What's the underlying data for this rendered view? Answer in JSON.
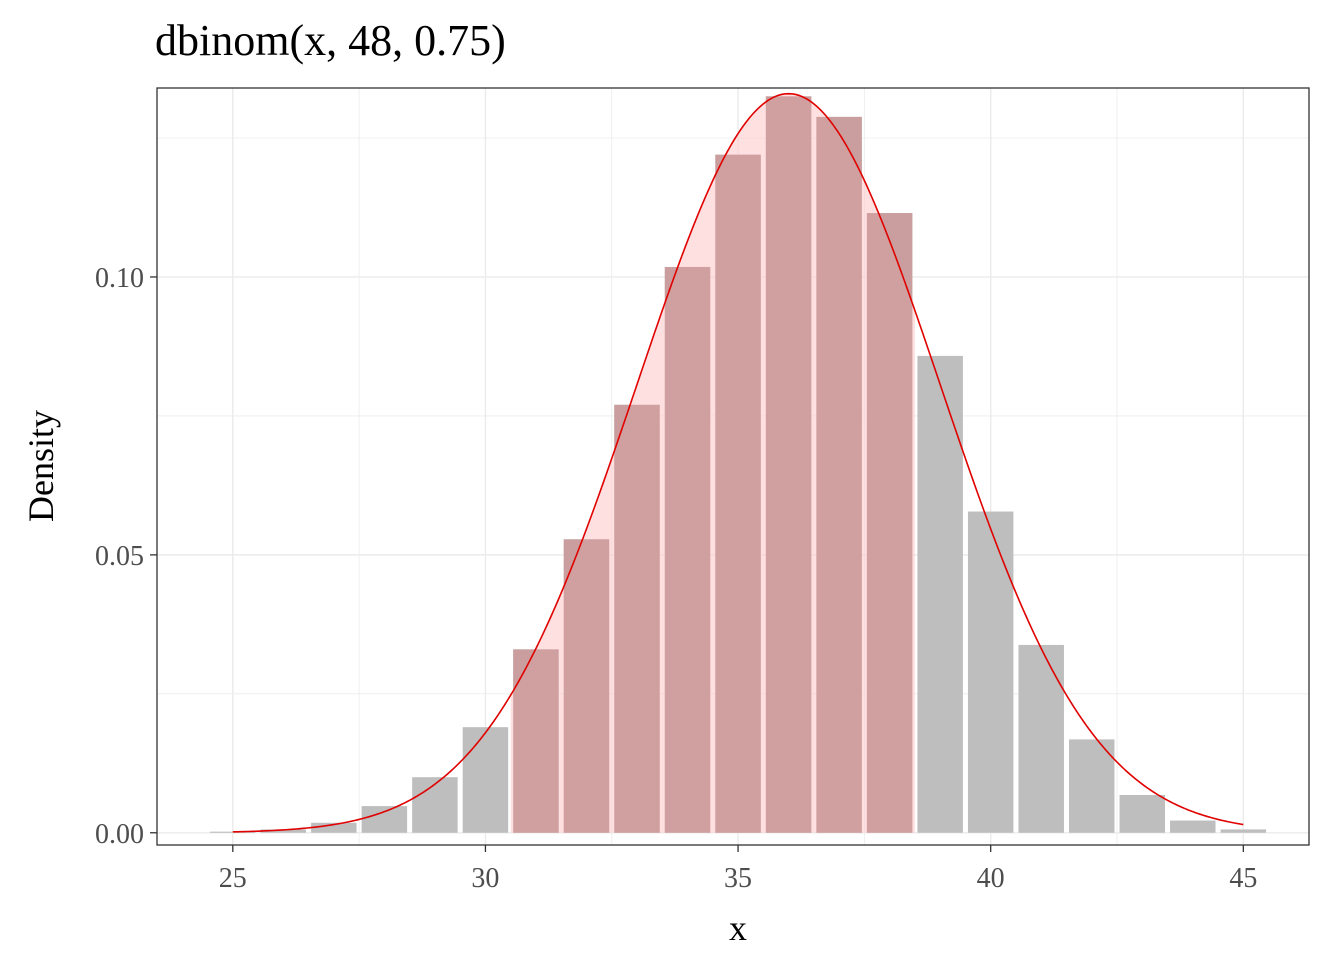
{
  "chart_data": {
    "type": "bar",
    "title": "dbinom(x, 48, 0.75)",
    "xlabel": "x",
    "ylabel": "Density",
    "x": [
      25,
      26,
      27,
      28,
      29,
      30,
      31,
      32,
      33,
      34,
      35,
      36,
      37,
      38,
      39,
      40,
      41,
      42,
      43,
      44,
      45
    ],
    "values": [
      0.0002,
      0.0006,
      0.0018,
      0.0048,
      0.01,
      0.019,
      0.033,
      0.0528,
      0.077,
      0.1018,
      0.122,
      0.1325,
      0.1288,
      0.1115,
      0.0858,
      0.0578,
      0.0338,
      0.0168,
      0.0068,
      0.0022,
      0.0006
    ],
    "highlight_range": [
      31,
      38
    ],
    "curve_range": [
      25,
      45
    ],
    "xlim": [
      23.5,
      46.3
    ],
    "ylim": [
      -0.0022,
      0.134
    ],
    "x_ticks": [
      25,
      30,
      35,
      40,
      45
    ],
    "x_tick_labels": [
      "25",
      "30",
      "35",
      "40",
      "45"
    ],
    "y_ticks": [
      0.0,
      0.05,
      0.1
    ],
    "y_tick_labels": [
      "0.00",
      "0.05",
      "0.10"
    ],
    "grid": true,
    "legend": "none",
    "colors": {
      "bar": "#bebebe",
      "highlight_fill": "#ffcccc",
      "highlight_bar": "#cc9999",
      "curve": "#e00000",
      "grid": "#ebebeb",
      "panel_border": "#333333"
    }
  }
}
